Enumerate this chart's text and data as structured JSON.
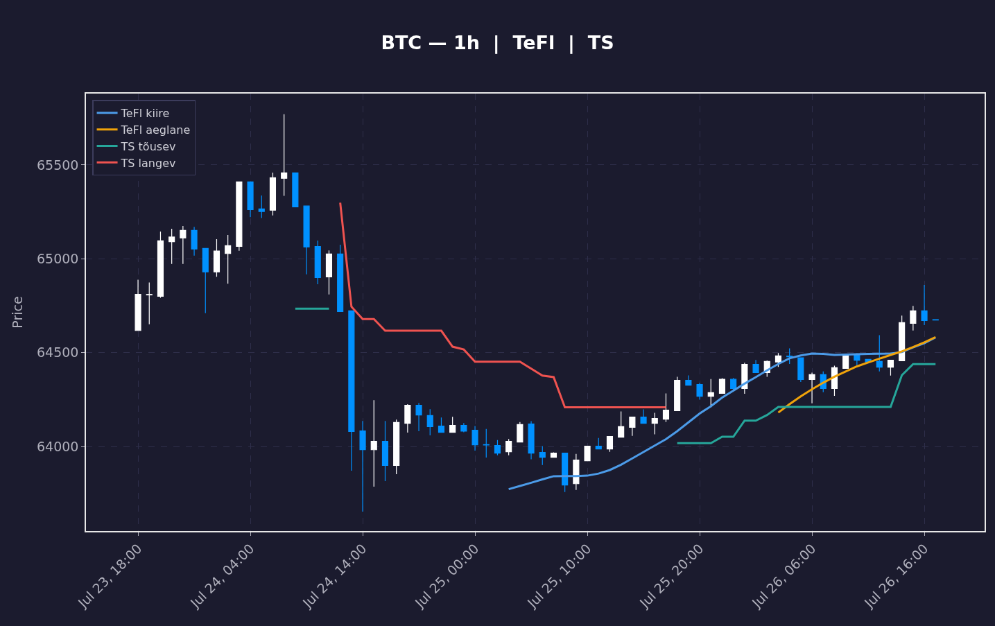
{
  "chart_data": {
    "type": "candlestick",
    "title": "BTC — 1h  |  TeFl  |  TS",
    "ylabel": "Price",
    "x": [
      "--07-23T18:00",
      "--07-23T19:00",
      "--07-23T20:00",
      "--07-23T21:00",
      "--07-23T22:00",
      "--07-23T23:00",
      "--07-24T00:00",
      "--07-24T01:00",
      "--07-24T02:00",
      "--07-24T03:00",
      "--07-24T04:00",
      "--07-24T05:00",
      "--07-24T06:00",
      "--07-24T07:00",
      "--07-24T08:00",
      "--07-24T09:00",
      "--07-24T10:00",
      "--07-24T11:00",
      "--07-24T12:00",
      "--07-24T13:00",
      "--07-24T14:00",
      "--07-24T15:00",
      "--07-24T16:00",
      "--07-24T17:00",
      "--07-24T18:00",
      "--07-24T19:00",
      "--07-24T20:00",
      "--07-24T21:00",
      "--07-24T22:00",
      "--07-24T23:00",
      "--07-25T00:00",
      "--07-25T01:00",
      "--07-25T02:00",
      "--07-25T03:00",
      "--07-25T04:00",
      "--07-25T05:00",
      "--07-25T06:00",
      "--07-25T07:00",
      "--07-25T08:00",
      "--07-25T09:00",
      "--07-25T10:00",
      "--07-25T11:00",
      "--07-25T12:00",
      "--07-25T13:00",
      "--07-25T14:00",
      "--07-25T15:00",
      "--07-25T16:00",
      "--07-25T17:00",
      "--07-25T18:00",
      "--07-25T19:00",
      "--07-25T20:00",
      "--07-25T21:00",
      "--07-25T22:00",
      "--07-25T23:00",
      "--07-26T00:00",
      "--07-26T01:00",
      "--07-26T02:00",
      "--07-26T03:00",
      "--07-26T04:00",
      "--07-26T05:00",
      "--07-26T06:00",
      "--07-26T07:00",
      "--07-26T08:00",
      "--07-26T09:00",
      "--07-26T10:00",
      "--07-26T11:00",
      "--07-26T12:00",
      "--07-26T13:00",
      "--07-26T14:00",
      "--07-26T15:00",
      "--07-26T16:00",
      "--07-26T17:00"
    ],
    "ohlc": [
      [
        64618,
        64889,
        64617,
        64811
      ],
      [
        64808,
        64874,
        64651,
        64810
      ],
      [
        64800,
        65145,
        64793,
        65096
      ],
      [
        65091,
        65160,
        64973,
        65116
      ],
      [
        65111,
        65175,
        64973,
        65151
      ],
      [
        65151,
        65170,
        65017,
        65052
      ],
      [
        65055,
        65056,
        64710,
        64930
      ],
      [
        64930,
        65105,
        64904,
        65041
      ],
      [
        65028,
        65127,
        64867,
        65070
      ],
      [
        65066,
        65412,
        65043,
        65410
      ],
      [
        65410,
        65412,
        65222,
        65262
      ],
      [
        65266,
        65337,
        65217,
        65252
      ],
      [
        65259,
        65459,
        65231,
        65432
      ],
      [
        65429,
        65770,
        65335,
        65458
      ],
      [
        65458,
        65458,
        65277,
        65277
      ],
      [
        65281,
        65281,
        64917,
        65063
      ],
      [
        65065,
        65097,
        64865,
        64900
      ],
      [
        64904,
        65045,
        64810,
        65026
      ],
      [
        65026,
        65075,
        64719,
        64719
      ],
      [
        64723,
        64723,
        63871,
        64080
      ],
      [
        64083,
        64136,
        63653,
        63983
      ],
      [
        63983,
        64247,
        63786,
        64028
      ],
      [
        64028,
        64136,
        63816,
        63899
      ],
      [
        63899,
        64144,
        63853,
        64128
      ],
      [
        64124,
        64226,
        64074,
        64220
      ],
      [
        64220,
        64232,
        64082,
        64168
      ],
      [
        64165,
        64199,
        64060,
        64106
      ],
      [
        64109,
        64155,
        64076,
        64076
      ],
      [
        64076,
        64158,
        64076,
        64113
      ],
      [
        64113,
        64125,
        64076,
        64082
      ],
      [
        64087,
        64109,
        63978,
        64009
      ],
      [
        64010,
        64094,
        63941,
        64008
      ],
      [
        64006,
        64035,
        63953,
        63965
      ],
      [
        63972,
        64040,
        63953,
        64028
      ],
      [
        64024,
        64131,
        64024,
        64117
      ],
      [
        64120,
        64135,
        63932,
        63965
      ],
      [
        63969,
        64002,
        63902,
        63943
      ],
      [
        63943,
        63969,
        63943,
        63965
      ],
      [
        63965,
        63965,
        63758,
        63795
      ],
      [
        63802,
        63961,
        63769,
        63928
      ],
      [
        63924,
        64002,
        63924,
        64002
      ],
      [
        64002,
        64046,
        63985,
        63987
      ],
      [
        63987,
        64054,
        63972,
        64054
      ],
      [
        64050,
        64187,
        64050,
        64106
      ],
      [
        64102,
        64157,
        64057,
        64157
      ],
      [
        64157,
        64198,
        64124,
        64124
      ],
      [
        64124,
        64180,
        64065,
        64150
      ],
      [
        64146,
        64283,
        64131,
        64194
      ],
      [
        64191,
        64372,
        64191,
        64353
      ],
      [
        64353,
        64379,
        64327,
        64327
      ],
      [
        64331,
        64338,
        64250,
        64268
      ],
      [
        64268,
        64360,
        64209,
        64287
      ],
      [
        64283,
        64364,
        64283,
        64358
      ],
      [
        64358,
        64365,
        64301,
        64309
      ],
      [
        64309,
        64446,
        64281,
        64438
      ],
      [
        64438,
        64461,
        64394,
        64394
      ],
      [
        64394,
        64458,
        64372,
        64453
      ],
      [
        64450,
        64498,
        64424,
        64483
      ],
      [
        64482,
        64523,
        64440,
        64478
      ],
      [
        64473,
        64473,
        64344,
        64357
      ],
      [
        64357,
        64394,
        64230,
        64383
      ],
      [
        64383,
        64400,
        64289,
        64309
      ],
      [
        64309,
        64431,
        64270,
        64420
      ],
      [
        64416,
        64486,
        64416,
        64486
      ],
      [
        64490,
        64497,
        64433,
        64460
      ],
      [
        64464,
        64464,
        64450,
        64450
      ],
      [
        64453,
        64593,
        64400,
        64423
      ],
      [
        64423,
        64460,
        64378,
        64460
      ],
      [
        64457,
        64697,
        64457,
        64660
      ],
      [
        64656,
        64749,
        64618,
        64723
      ],
      [
        64723,
        64861,
        64647,
        64671
      ],
      [
        64676,
        64676,
        64674,
        64674
      ]
    ],
    "colors": [
      "#ffffff",
      "#ffffff",
      "#ffffff",
      "#ffffff",
      "#ffffff",
      "#0091ff",
      "#0091ff",
      "#ffffff",
      "#ffffff",
      "#ffffff",
      "#0091ff",
      "#0091ff",
      "#ffffff",
      "#ffffff",
      "#0091ff",
      "#0091ff",
      "#0091ff",
      "#ffffff",
      "#0091ff",
      "#0091ff",
      "#0091ff",
      "#ffffff",
      "#0091ff",
      "#ffffff",
      "#ffffff",
      "#0091ff",
      "#0091ff",
      "#0091ff",
      "#ffffff",
      "#0091ff",
      "#0091ff",
      "#0091ff",
      "#0091ff",
      "#ffffff",
      "#ffffff",
      "#0091ff",
      "#0091ff",
      "#ffffff",
      "#0091ff",
      "#ffffff",
      "#ffffff",
      "#0091ff",
      "#ffffff",
      "#ffffff",
      "#ffffff",
      "#0091ff",
      "#ffffff",
      "#ffffff",
      "#ffffff",
      "#0091ff",
      "#0091ff",
      "#ffffff",
      "#ffffff",
      "#0091ff",
      "#ffffff",
      "#0091ff",
      "#ffffff",
      "#ffffff",
      "#0091ff",
      "#0091ff",
      "#ffffff",
      "#0091ff",
      "#ffffff",
      "#ffffff",
      "#0091ff",
      "#0091ff",
      "#0091ff",
      "#ffffff",
      "#ffffff",
      "#ffffff",
      "#0091ff",
      "#0091ff"
    ],
    "series": [
      {
        "type": "line",
        "name": "TeFl kiire",
        "color": "#4c9be8",
        "values": [
          null,
          null,
          null,
          null,
          null,
          null,
          null,
          null,
          null,
          null,
          null,
          null,
          null,
          null,
          null,
          null,
          null,
          null,
          null,
          null,
          null,
          null,
          null,
          null,
          null,
          null,
          null,
          null,
          null,
          null,
          null,
          null,
          null,
          63773,
          63790,
          63807,
          63825,
          63842,
          63843,
          63843,
          63845,
          63856,
          63875,
          63903,
          63937,
          63971,
          64005,
          64039,
          64082,
          64129,
          64176,
          64215,
          64261,
          64298,
          64335,
          64370,
          64406,
          64440,
          64470,
          64485,
          64495,
          64493,
          64488,
          64490,
          64492,
          64493,
          64494,
          64495,
          64503,
          64528,
          64550,
          64581
        ]
      },
      {
        "type": "line",
        "name": "TeFl aeglane",
        "color": "#f0a30a",
        "values": [
          null,
          null,
          null,
          null,
          null,
          null,
          null,
          null,
          null,
          null,
          null,
          null,
          null,
          null,
          null,
          null,
          null,
          null,
          null,
          null,
          null,
          null,
          null,
          null,
          null,
          null,
          null,
          null,
          null,
          null,
          null,
          null,
          null,
          null,
          null,
          null,
          null,
          null,
          null,
          null,
          null,
          null,
          null,
          null,
          null,
          null,
          null,
          null,
          null,
          null,
          null,
          null,
          null,
          null,
          null,
          null,
          null,
          64181,
          64226,
          64267,
          64305,
          64340,
          64372,
          64400,
          64427,
          64448,
          64468,
          64488,
          64507,
          64530,
          64555,
          64583
        ]
      },
      {
        "type": "line",
        "name": "TS tõusev",
        "color": "#26a69a",
        "values": [
          null,
          null,
          null,
          null,
          null,
          null,
          null,
          null,
          null,
          null,
          null,
          null,
          null,
          null,
          64734,
          64734,
          64734,
          64734,
          null,
          null,
          null,
          null,
          null,
          null,
          null,
          null,
          null,
          null,
          null,
          null,
          null,
          null,
          null,
          null,
          null,
          null,
          null,
          null,
          null,
          null,
          null,
          null,
          null,
          null,
          null,
          null,
          null,
          null,
          64018,
          64018,
          64018,
          64018,
          64052,
          64052,
          64138,
          64138,
          64168,
          64211,
          64211,
          64211,
          64211,
          64211,
          64211,
          64211,
          64211,
          64211,
          64211,
          64211,
          64380,
          64439,
          64439,
          64439
        ]
      },
      {
        "type": "line",
        "name": "TS langev",
        "color": "#ef5350",
        "values": [
          null,
          null,
          null,
          null,
          null,
          null,
          null,
          null,
          null,
          null,
          null,
          null,
          null,
          null,
          null,
          null,
          null,
          null,
          65299,
          64745,
          64679,
          64679,
          64617,
          64617,
          64617,
          64617,
          64617,
          64617,
          64532,
          64517,
          64452,
          64452,
          64452,
          64452,
          64452,
          64415,
          64378,
          64370,
          64209,
          64209,
          64209,
          64209,
          64209,
          64209,
          64209,
          64209,
          64209,
          64209,
          null,
          null,
          null,
          null,
          null,
          null,
          null,
          null,
          null,
          null,
          null,
          null,
          null,
          null,
          null,
          null,
          null,
          null,
          null,
          null,
          null,
          null,
          null,
          null
        ]
      }
    ],
    "xlim": [
      "--07-23T13:22",
      "--07-26T21:22"
    ],
    "xticks": [
      {
        "value": "--07-23T18:00",
        "label": "Jul 23, 18:00"
      },
      {
        "value": "--07-24T04:00",
        "label": "Jul 24, 04:00"
      },
      {
        "value": "--07-24T14:00",
        "label": "Jul 24, 14:00"
      },
      {
        "value": "--07-25T00:00",
        "label": "Jul 25, 00:00"
      },
      {
        "value": "--07-25T10:00",
        "label": "Jul 25, 10:00"
      },
      {
        "value": "--07-25T20:00",
        "label": "Jul 25, 20:00"
      },
      {
        "value": "--07-26T06:00",
        "label": "Jul 26, 06:00"
      },
      {
        "value": "--07-26T16:00",
        "label": "Jul 26, 16:00"
      }
    ],
    "ylim": [
      63550,
      65880
    ],
    "yticks": [
      64000,
      64500,
      65000,
      65500
    ],
    "grid": true,
    "legend": "top left",
    "line_style": "solid",
    "marker": "none"
  }
}
